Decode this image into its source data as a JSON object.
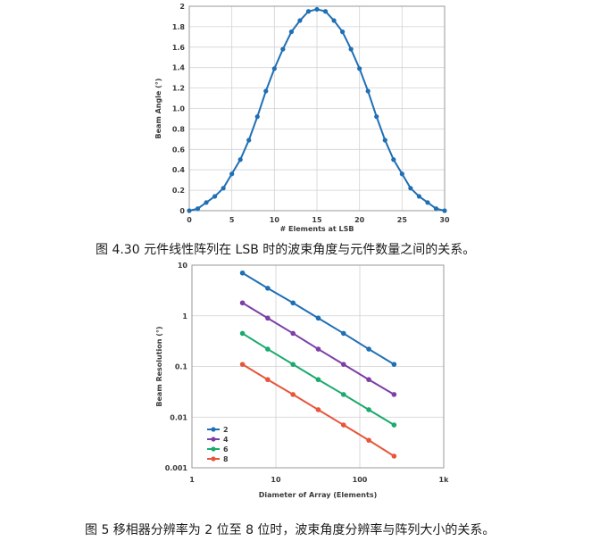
{
  "captions": {
    "fig1": "图 4.30 元件线性阵列在 LSB 时的波束角度与元件数量之间的关系。",
    "fig2": "图 5 移相器分辨率为 2 位至 8 位时，波束角度分辨率与阵列大小的关系。"
  },
  "chart_data": [
    {
      "type": "line",
      "xlabel": "# Elements at LSB",
      "ylabel": "Beam Angle (°)",
      "xlim": [
        0,
        30
      ],
      "ylim": [
        0,
        2
      ],
      "xticks": [
        "0",
        "5",
        "10",
        "15",
        "20",
        "25",
        "30"
      ],
      "yticks": [
        "0",
        "0.2",
        "0.4",
        "0.6",
        "0.8",
        "1.0",
        "1.2",
        "1.4",
        "1.6",
        "1.8",
        "2"
      ],
      "grid": true,
      "color": "#1f6fb5",
      "x": [
        0,
        1,
        2,
        3,
        4,
        5,
        6,
        7,
        8,
        9,
        10,
        11,
        12,
        13,
        14,
        15,
        16,
        17,
        18,
        19,
        20,
        21,
        22,
        23,
        24,
        25,
        26,
        27,
        28,
        29,
        30
      ],
      "y": [
        0,
        0.02,
        0.08,
        0.14,
        0.22,
        0.36,
        0.5,
        0.69,
        0.92,
        1.17,
        1.39,
        1.58,
        1.75,
        1.86,
        1.95,
        1.97,
        1.95,
        1.86,
        1.75,
        1.58,
        1.39,
        1.17,
        0.92,
        0.69,
        0.5,
        0.36,
        0.22,
        0.14,
        0.08,
        0.02,
        0
      ]
    },
    {
      "type": "line",
      "xlabel": "Diameter of Array (Elements)",
      "ylabel": "Beam Resolution (°)",
      "xscale": "log",
      "yscale": "log",
      "xlim": [
        1,
        1000
      ],
      "ylim": [
        0.001,
        10
      ],
      "xticks": [
        "1",
        "10",
        "100",
        "1k"
      ],
      "yticks": [
        "0.001",
        "0.01",
        "0.1",
        "1",
        "10"
      ],
      "grid": true,
      "legend": "bottom-left",
      "x": [
        4,
        8,
        16,
        32,
        64,
        128,
        256
      ],
      "series": [
        {
          "name": "2",
          "color": "#1f6fb5",
          "values": [
            7.0,
            3.5,
            1.8,
            0.9,
            0.45,
            0.22,
            0.11
          ]
        },
        {
          "name": "4",
          "color": "#7b3fa6",
          "values": [
            1.8,
            0.9,
            0.45,
            0.22,
            0.11,
            0.055,
            0.028
          ]
        },
        {
          "name": "6",
          "color": "#1aaa6e",
          "values": [
            0.45,
            0.22,
            0.11,
            0.055,
            0.028,
            0.014,
            0.007
          ]
        },
        {
          "name": "8",
          "color": "#e8553a",
          "values": [
            0.11,
            0.055,
            0.028,
            0.014,
            0.007,
            0.0035,
            0.0017
          ]
        }
      ]
    }
  ]
}
